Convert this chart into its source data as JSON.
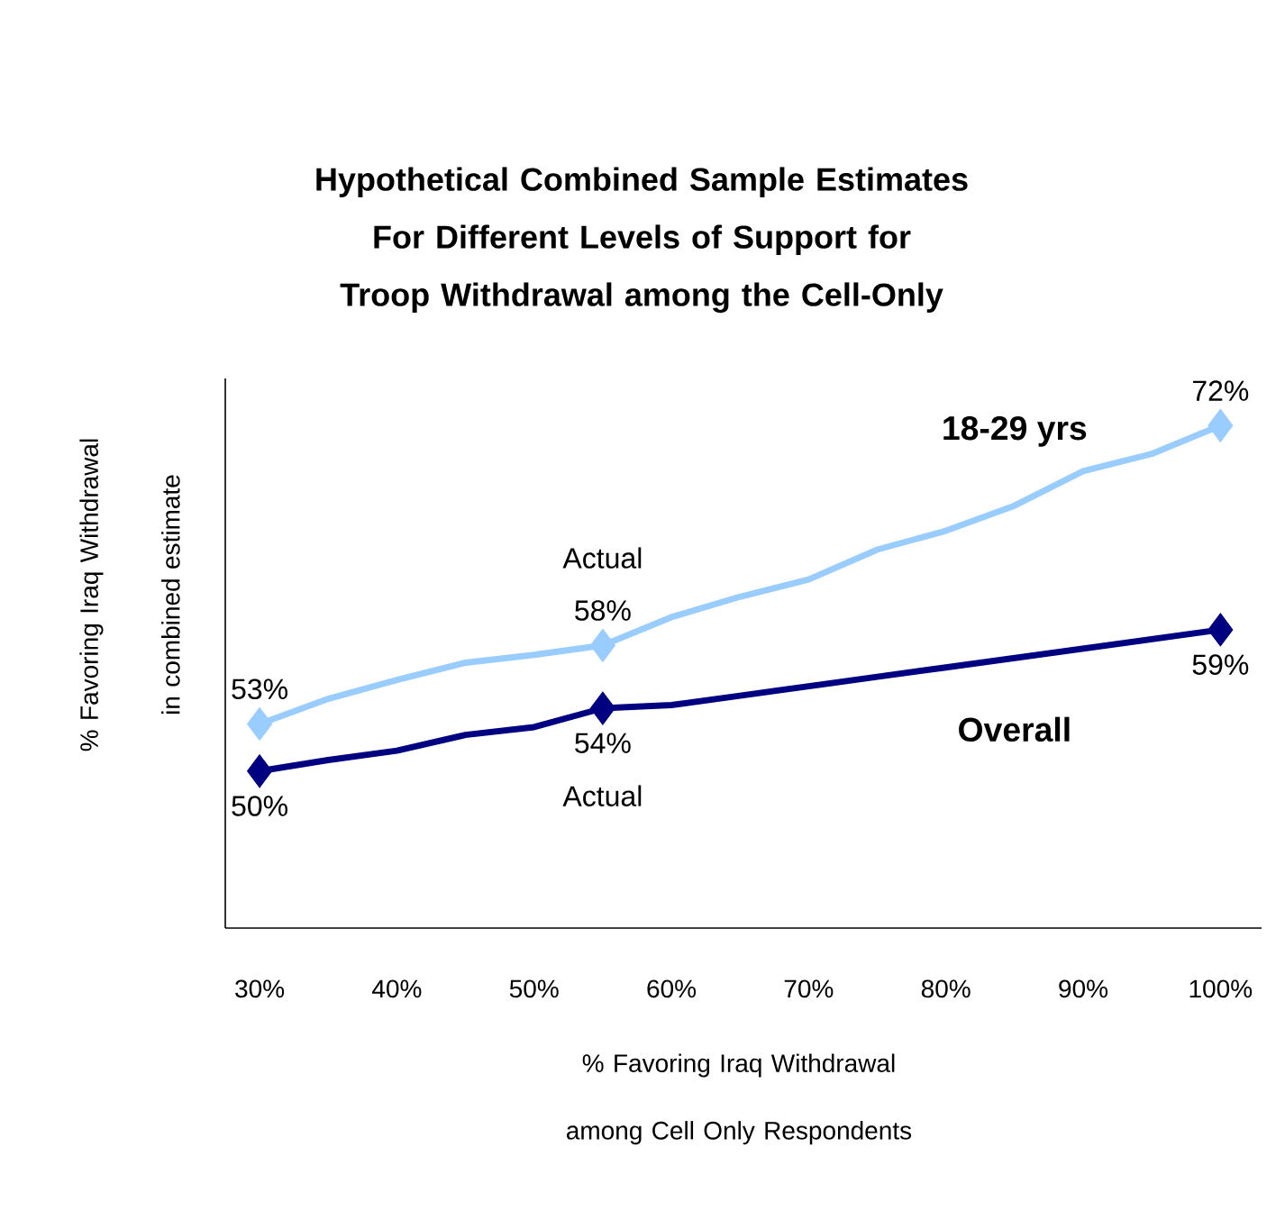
{
  "chart_data": {
    "type": "line",
    "title": "Hypothetical Combined Sample Estimates For Different Levels of Support for Troop Withdrawal among the Cell-Only",
    "xlabel": "% Favoring Iraq Withdrawal among Cell Only Respondents",
    "ylabel": "% Favoring Iraq Withdrawal in combined estimate",
    "x": [
      30,
      35,
      40,
      45,
      50,
      55,
      60,
      65,
      70,
      75,
      80,
      85,
      90,
      95,
      100
    ],
    "series": [
      {
        "name": "18-29 yrs",
        "color": "#99ccff",
        "values": [
          53,
          54.6,
          55.8,
          56.9,
          57.4,
          58,
          59.8,
          61.1,
          62.2,
          64.1,
          65.3,
          66.9,
          69.1,
          70.2,
          72
        ],
        "value_labels": [
          "53%",
          null,
          null,
          null,
          null,
          "58%",
          null,
          null,
          null,
          null,
          null,
          null,
          null,
          null,
          "72%"
        ]
      },
      {
        "name": "Overall",
        "color": "#000080",
        "values": [
          50,
          50.7,
          51.3,
          52.3,
          52.8,
          54,
          54.2,
          54.8,
          55.4,
          56,
          56.6,
          57.2,
          57.8,
          58.4,
          59
        ],
        "value_labels": [
          "50%",
          null,
          null,
          null,
          null,
          "54%",
          null,
          null,
          null,
          null,
          null,
          null,
          null,
          null,
          "59%"
        ]
      },
      {
        "type": "scatter",
        "marker": "diamond",
        "color": "#99ccff",
        "x": [
          30,
          55,
          100
        ],
        "values": [
          53,
          58,
          72
        ]
      },
      {
        "type": "scatter",
        "marker": "diamond",
        "color": "#000080",
        "x": [
          30,
          55,
          100
        ],
        "values": [
          50,
          54,
          59
        ]
      }
    ],
    "annotations": [
      {
        "text": "Actual",
        "x": 55,
        "y": 58
      },
      {
        "text": "Actual",
        "x": 55,
        "y": 54
      }
    ],
    "xlim": [
      27.5,
      103
    ],
    "ylim": [
      40,
      75
    ],
    "xticks": [
      {
        "value": 30,
        "label": "30%"
      },
      {
        "value": 40,
        "label": "40%"
      },
      {
        "value": 50,
        "label": "50%"
      },
      {
        "value": 60,
        "label": "60%"
      },
      {
        "value": 70,
        "label": "70%"
      },
      {
        "value": 80,
        "label": "80%"
      },
      {
        "value": 90,
        "label": "90%"
      },
      {
        "value": 100,
        "label": "100%"
      }
    ],
    "tick_labels": "x",
    "grid": false,
    "legend": false,
    "marker": "none",
    "line_style": "solid"
  }
}
